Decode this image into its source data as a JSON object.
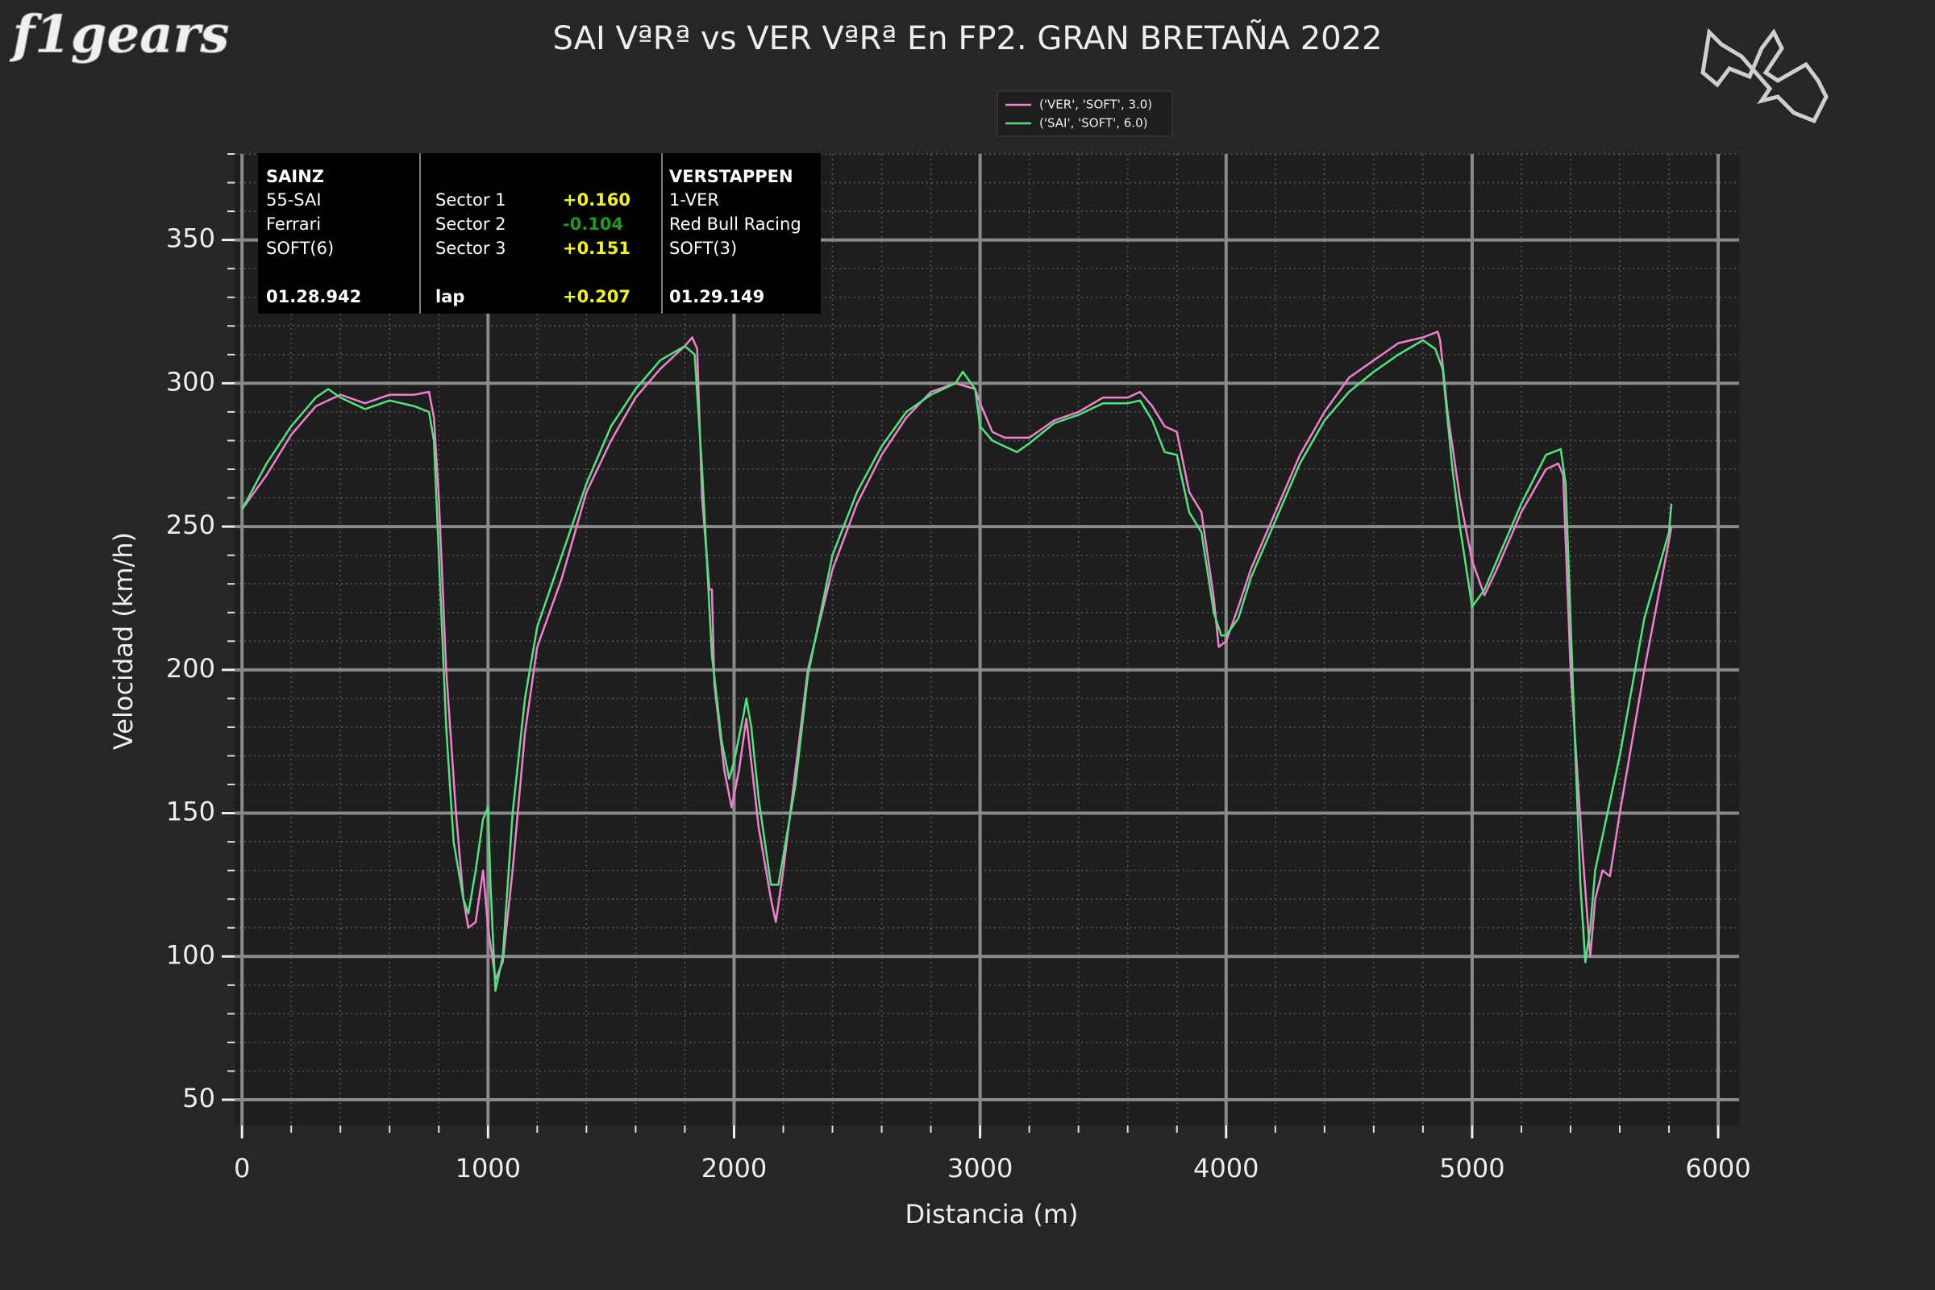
{
  "chart_data": {
    "type": "line",
    "logo": "f1gears",
    "title": "SAI VªRª vs VER VªRª En FP2. GRAN BRETAÑA 2022",
    "xlabel": "Distancia (m)",
    "ylabel": "Velocidad (km/h)",
    "xlim": [
      -30,
      6085
    ],
    "ylim": [
      41,
      380
    ],
    "xticks": [
      0,
      1000,
      2000,
      3000,
      4000,
      5000,
      6000
    ],
    "yticks": [
      50,
      100,
      150,
      200,
      250,
      300,
      350
    ],
    "grid": true,
    "legend": "top-center",
    "series": [
      {
        "name": "('VER', 'SOFT', 3.0)",
        "color": "#f27fcf",
        "x": [
          0,
          100,
          200,
          300,
          400,
          500,
          600,
          700,
          760,
          780,
          800,
          830,
          870,
          900,
          920,
          950,
          980,
          1000,
          1030,
          1060,
          1100,
          1150,
          1200,
          1300,
          1400,
          1500,
          1600,
          1700,
          1800,
          1830,
          1850,
          1870,
          1900,
          1910,
          1920,
          1960,
          1990,
          2020,
          2050,
          2100,
          2150,
          2170,
          2200,
          2250,
          2300,
          2400,
          2500,
          2600,
          2700,
          2800,
          2900,
          2980,
          3000,
          3050,
          3100,
          3200,
          3300,
          3400,
          3500,
          3600,
          3650,
          3700,
          3750,
          3800,
          3850,
          3900,
          3950,
          3970,
          4000,
          4050,
          4100,
          4200,
          4300,
          4400,
          4500,
          4600,
          4700,
          4800,
          4860,
          4870,
          4900,
          4950,
          5000,
          5050,
          5100,
          5200,
          5300,
          5350,
          5370,
          5400,
          5450,
          5480,
          5500,
          5530,
          5560,
          5600,
          5700,
          5800,
          5810
        ],
        "values": [
          256,
          268,
          282,
          292,
          296,
          293,
          296,
          296,
          297,
          288,
          260,
          200,
          150,
          120,
          110,
          112,
          130,
          110,
          92,
          98,
          130,
          178,
          208,
          232,
          262,
          280,
          295,
          305,
          313,
          316,
          312,
          260,
          228,
          228,
          195,
          165,
          152,
          165,
          183,
          145,
          120,
          112,
          130,
          165,
          200,
          235,
          258,
          275,
          288,
          297,
          300,
          298,
          293,
          283,
          281,
          281,
          287,
          290,
          295,
          295,
          297,
          292,
          285,
          283,
          262,
          255,
          225,
          208,
          210,
          222,
          235,
          255,
          275,
          290,
          302,
          308,
          314,
          316,
          318,
          315,
          290,
          260,
          238,
          226,
          235,
          255,
          270,
          272,
          268,
          200,
          135,
          100,
          120,
          130,
          128,
          150,
          200,
          245,
          250
        ]
      },
      {
        "name": "('SAI', 'SOFT', 6.0)",
        "color": "#4fe57c",
        "x": [
          0,
          100,
          200,
          300,
          350,
          400,
          500,
          600,
          700,
          760,
          780,
          800,
          830,
          860,
          900,
          920,
          950,
          980,
          1000,
          1010,
          1030,
          1060,
          1100,
          1150,
          1200,
          1300,
          1400,
          1500,
          1600,
          1700,
          1800,
          1840,
          1870,
          1910,
          1950,
          1980,
          2000,
          2040,
          2050,
          2070,
          2100,
          2150,
          2180,
          2250,
          2300,
          2400,
          2500,
          2600,
          2700,
          2800,
          2900,
          2930,
          2980,
          3000,
          3050,
          3100,
          3150,
          3200,
          3300,
          3400,
          3500,
          3600,
          3650,
          3700,
          3750,
          3800,
          3850,
          3900,
          3950,
          3980,
          4000,
          4050,
          4100,
          4200,
          4300,
          4400,
          4500,
          4600,
          4700,
          4800,
          4850,
          4880,
          4920,
          4950,
          5000,
          5050,
          5100,
          5200,
          5300,
          5360,
          5380,
          5420,
          5440,
          5460,
          5480,
          5500,
          5600,
          5700,
          5800,
          5810
        ],
        "values": [
          256,
          272,
          285,
          295,
          298,
          295,
          291,
          294,
          292,
          290,
          280,
          240,
          180,
          140,
          120,
          115,
          130,
          148,
          152,
          125,
          88,
          100,
          150,
          190,
          215,
          240,
          265,
          285,
          298,
          308,
          313,
          310,
          270,
          205,
          175,
          162,
          168,
          185,
          190,
          180,
          155,
          125,
          125,
          160,
          198,
          240,
          262,
          278,
          290,
          296,
          300,
          304,
          298,
          285,
          280,
          278,
          276,
          279,
          286,
          289,
          293,
          293,
          294,
          287,
          276,
          275,
          255,
          248,
          220,
          212,
          212,
          218,
          232,
          252,
          272,
          287,
          297,
          304,
          310,
          315,
          312,
          305,
          270,
          250,
          222,
          228,
          238,
          258,
          275,
          277,
          265,
          170,
          125,
          98,
          110,
          130,
          170,
          218,
          248,
          258
        ]
      }
    ],
    "info_box": {
      "driver1": {
        "name": "SAINZ",
        "number": "55-SAI",
        "team": "Ferrari",
        "tyre": "SOFT(6)",
        "laptime": "01.28.942"
      },
      "sectors": [
        {
          "label": "Sector 1",
          "delta": "+0.160",
          "color": "#f5f51a"
        },
        {
          "label": "Sector 2",
          "delta": "-0.104",
          "color": "#1f9a1f"
        },
        {
          "label": "Sector 3",
          "delta": "+0.151",
          "color": "#f5f51a"
        }
      ],
      "lap": {
        "label": "lap",
        "delta": "+0.207",
        "color": "#f5f51a"
      },
      "driver2": {
        "name": "VERSTAPPEN",
        "number": "1-VER",
        "team": "Red Bull Racing",
        "tyre": "SOFT(3)",
        "laptime": "01.29.149"
      }
    }
  }
}
